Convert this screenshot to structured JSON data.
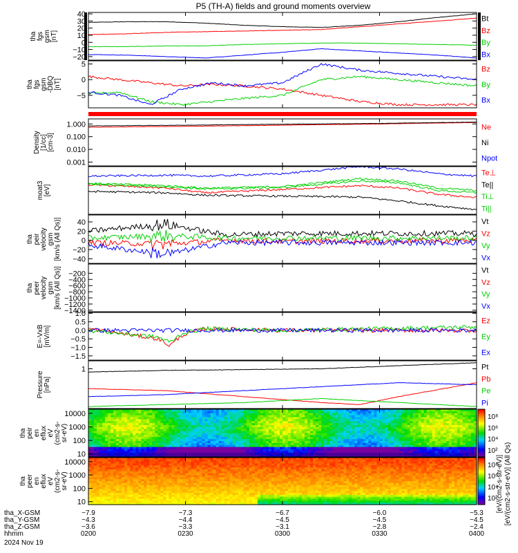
{
  "title": "P5 (TH-A) fields and ground moments overview",
  "colors": {
    "black": "#000000",
    "red": "#ff0000",
    "green": "#00d000",
    "blue": "#0000ff",
    "purple": "#8a2be2"
  },
  "chart_data": [
    {
      "id": "fgs",
      "type": "line",
      "ylabel": [
        "tha",
        "fgs",
        "gsm",
        "[nT]"
      ],
      "ylim": [
        -25,
        42
      ],
      "yticks": [
        "40",
        "30",
        "20",
        "10",
        "0",
        "−10",
        "−20"
      ],
      "ytick_values": [
        40,
        30,
        20,
        10,
        0,
        -10,
        -20
      ],
      "series": [
        {
          "name": "Bt",
          "color": "black",
          "x": [
            0,
            10,
            20,
            30,
            40,
            50,
            60,
            70,
            80,
            90,
            100
          ],
          "y": [
            28,
            29,
            29,
            27,
            24,
            22,
            21,
            24,
            29,
            35,
            40
          ]
        },
        {
          "name": "Bz",
          "color": "red",
          "x": [
            0,
            10,
            20,
            30,
            40,
            50,
            60,
            70,
            80,
            90,
            100
          ],
          "y": [
            11,
            12,
            14,
            15,
            16,
            17,
            18,
            22,
            26,
            30,
            34
          ]
        },
        {
          "name": "By",
          "color": "green",
          "x": [
            0,
            10,
            20,
            30,
            40,
            50,
            60,
            70,
            80,
            90,
            100
          ],
          "y": [
            -6,
            -6,
            -5,
            -5,
            -3,
            -2,
            -1,
            -1,
            -2,
            -3,
            -4
          ]
        },
        {
          "name": "Bx",
          "color": "blue",
          "x": [
            0,
            10,
            20,
            30,
            40,
            50,
            60,
            70,
            80,
            90,
            100
          ],
          "y": [
            -17,
            -18,
            -20,
            -22,
            -18,
            -14,
            -9,
            -12,
            -15,
            -18,
            -22
          ]
        }
      ]
    },
    {
      "id": "fgs_dsl",
      "type": "line",
      "ylabel": [
        "tha",
        "fgs",
        "gsm",
        "-DBQ",
        "[nT]"
      ],
      "ylim": [
        -9,
        6
      ],
      "yticks": [
        "5",
        "0",
        "−5"
      ],
      "ytick_values": [
        5,
        0,
        -5
      ],
      "series": [
        {
          "name": "Bz",
          "color": "red",
          "x": [
            0,
            8,
            16,
            24,
            32,
            40,
            50,
            60,
            70,
            80,
            90,
            100
          ],
          "y": [
            1,
            0,
            -1,
            -2,
            -1.5,
            -2,
            -3,
            -5,
            -7,
            -8,
            -8,
            -8
          ]
        },
        {
          "name": "By",
          "color": "green",
          "x": [
            0,
            8,
            16,
            24,
            32,
            40,
            50,
            60,
            70,
            80,
            90,
            100
          ],
          "y": [
            -4.5,
            -4,
            -7,
            -8,
            -7,
            -6,
            -5,
            0,
            1,
            0,
            -1,
            -2
          ]
        },
        {
          "name": "Bx",
          "color": "blue",
          "x": [
            0,
            8,
            16,
            24,
            32,
            40,
            50,
            60,
            70,
            80,
            90,
            100
          ],
          "y": [
            -4,
            -5,
            -8,
            -3,
            -1,
            -2,
            -1,
            5,
            3,
            2,
            1,
            0
          ]
        }
      ]
    },
    {
      "id": "density",
      "type": "line",
      "yscale": "log",
      "ylabel": [
        "Density",
        "[1/cc]",
        "[cm-3]"
      ],
      "ylim": [
        0.0005,
        2.5
      ],
      "yticks": [
        "1.000",
        "0.100",
        "0.010",
        "0.001"
      ],
      "ytick_values": [
        1,
        0.1,
        0.01,
        0.001
      ],
      "series": [
        {
          "name": "Ne",
          "color": "red",
          "x": [
            0,
            25,
            50,
            75,
            100
          ],
          "y": [
            0.55,
            0.65,
            0.8,
            1.0,
            1.3
          ]
        },
        {
          "name": "Ni",
          "color": "black",
          "x": [
            0,
            25,
            50,
            75,
            100
          ],
          "y": [
            0.7,
            0.8,
            0.95,
            1.1,
            1.4
          ]
        },
        {
          "name": "Npot",
          "color": "blue",
          "x": [],
          "y": []
        }
      ]
    },
    {
      "id": "temp",
      "type": "line",
      "ylabel": [
        "moat3",
        "[eV]"
      ],
      "ylim": [
        0,
        1
      ],
      "yticks": [],
      "ytick_values": [],
      "series": [
        {
          "name": "Te⊥",
          "color": "red",
          "x": [
            0,
            20,
            30,
            50,
            70,
            80,
            90,
            100
          ],
          "y": [
            0.62,
            0.55,
            0.45,
            0.52,
            0.6,
            0.55,
            0.42,
            0.35
          ]
        },
        {
          "name": "Te||",
          "color": "black",
          "x": [
            0,
            20,
            30,
            50,
            70,
            80,
            90,
            100
          ],
          "y": [
            0.48,
            0.45,
            0.4,
            0.38,
            0.36,
            0.28,
            0.18,
            0.1
          ]
        },
        {
          "name": "Ti⊥",
          "color": "green",
          "x": [
            0,
            20,
            30,
            50,
            70,
            80,
            90,
            100
          ],
          "y": [
            0.65,
            0.6,
            0.55,
            0.58,
            0.75,
            0.7,
            0.55,
            0.5
          ]
        },
        {
          "name": "Ti||",
          "color": "green",
          "x": [
            0,
            20,
            30,
            50,
            70,
            80,
            90,
            100
          ],
          "y": [
            0.63,
            0.58,
            0.53,
            0.56,
            0.7,
            0.66,
            0.5,
            0.45
          ]
        },
        {
          "name": "",
          "color": "blue",
          "x": [
            0,
            20,
            30,
            50,
            70,
            80,
            90,
            100
          ],
          "y": [
            0.8,
            0.82,
            0.8,
            0.85,
            1.0,
            0.95,
            0.85,
            0.8
          ]
        }
      ]
    },
    {
      "id": "vel_peir",
      "type": "line",
      "ylabel": [
        "tha",
        "peir",
        "velocity",
        "gsm",
        "[km/s (All Qs)]"
      ],
      "ylim": [
        -50,
        55
      ],
      "yticks": [
        "40",
        "20",
        "0",
        "−20",
        "−40"
      ],
      "ytick_values": [
        40,
        20,
        0,
        -20,
        -40
      ],
      "series": [
        {
          "name": "Vt",
          "color": "black",
          "x": [
            0,
            20,
            35,
            50,
            100
          ],
          "y": [
            20,
            35,
            12,
            15,
            15
          ]
        },
        {
          "name": "Vz",
          "color": "red",
          "x": [
            0,
            20,
            35,
            50,
            100
          ],
          "y": [
            -5,
            -8,
            0,
            -2,
            0
          ]
        },
        {
          "name": "Vy",
          "color": "green",
          "x": [
            0,
            20,
            35,
            50,
            100
          ],
          "y": [
            5,
            10,
            5,
            5,
            5
          ]
        },
        {
          "name": "Vx",
          "color": "blue",
          "x": [
            0,
            20,
            35,
            50,
            100
          ],
          "y": [
            -10,
            -30,
            -5,
            -5,
            -5
          ]
        }
      ]
    },
    {
      "id": "vel_peer",
      "type": "line",
      "ylabel": [
        "tha",
        "peer",
        "velocity",
        "gsm",
        "[km/s (All Qs)]"
      ],
      "ylim": [
        -1450,
        100
      ],
      "yticks": [
        "−200",
        "−400",
        "−600",
        "−800",
        "−1000",
        "−1200",
        "−1400"
      ],
      "ytick_values": [
        -200,
        -400,
        -600,
        -800,
        -1000,
        -1200,
        -1400
      ],
      "series": [
        {
          "name": "Vt",
          "color": "black",
          "x": [],
          "y": []
        },
        {
          "name": "Vz",
          "color": "red",
          "x": [],
          "y": []
        },
        {
          "name": "Vy",
          "color": "green",
          "x": [],
          "y": []
        },
        {
          "name": "Vx",
          "color": "blue",
          "x": [],
          "y": []
        }
      ]
    },
    {
      "id": "efield",
      "type": "line",
      "ylabel": [
        "E=-VxB",
        "[mV/m]"
      ],
      "ylim": [
        -1.75,
        1.05
      ],
      "yticks": [
        "1.0",
        "0.5",
        "0.0",
        "−0.5",
        "−1.0",
        "−1.5"
      ],
      "ytick_values": [
        1,
        0.5,
        0,
        -0.5,
        -1,
        -1.5
      ],
      "series": [
        {
          "name": "Ez",
          "color": "red",
          "x": [
            0,
            18,
            21,
            24,
            30,
            50,
            100
          ],
          "y": [
            0.1,
            -0.5,
            -0.9,
            -0.3,
            0.1,
            0,
            0
          ]
        },
        {
          "name": "Ey",
          "color": "green",
          "x": [
            0,
            18,
            21,
            24,
            30,
            50,
            100
          ],
          "y": [
            0,
            -0.4,
            -0.7,
            -0.2,
            0.1,
            0,
            0.2
          ]
        },
        {
          "name": "Ex",
          "color": "blue",
          "x": [
            0,
            18,
            21,
            24,
            30,
            50,
            100
          ],
          "y": [
            0,
            0,
            0,
            0,
            0,
            0,
            0
          ]
        }
      ]
    },
    {
      "id": "pressure",
      "type": "line",
      "ylabel": [
        "Pressure",
        "[nPa]"
      ],
      "ylim": [
        0,
        1.2
      ],
      "yticks": [
        "1"
      ],
      "ytick_values": [
        1
      ],
      "series": [
        {
          "name": "Pt",
          "color": "black",
          "x": [
            0,
            20,
            40,
            60,
            80,
            100
          ],
          "y": [
            0.92,
            0.96,
            0.98,
            1.0,
            1.08,
            1.15
          ]
        },
        {
          "name": "Pb",
          "color": "red",
          "x": [
            0,
            20,
            40,
            60,
            70,
            80,
            100
          ],
          "y": [
            0.5,
            0.45,
            0.3,
            0.15,
            0.1,
            0.3,
            0.65
          ]
        },
        {
          "name": "Pe",
          "color": "green",
          "x": [
            0,
            20,
            40,
            60,
            80,
            100
          ],
          "y": [
            0.05,
            0.1,
            0.15,
            0.25,
            0.15,
            0.05
          ]
        },
        {
          "name": "Pi",
          "color": "blue",
          "x": [
            0,
            20,
            40,
            60,
            80,
            100
          ],
          "y": [
            0.3,
            0.35,
            0.45,
            0.55,
            0.65,
            0.6
          ]
        }
      ]
    },
    {
      "id": "peir_spec",
      "type": "heatmap",
      "ylabel": [
        "tha",
        "peir",
        "en",
        "eflux",
        "eV",
        "(cm2-s-",
        "sr-eV)"
      ],
      "yticks": [
        "10000",
        "1000",
        "100",
        "10"
      ],
      "ytick_values": [
        10000,
        1000,
        100,
        10
      ]
    },
    {
      "id": "peer_spec",
      "type": "heatmap",
      "ylabel": [
        "tha",
        "peer",
        "en",
        "eflux",
        "eV",
        "(cm2-s-",
        "sr-eV)"
      ],
      "yticks": [
        "10000",
        "1000",
        "100",
        "10"
      ],
      "ytick_values": [
        10000,
        1000,
        100,
        10
      ]
    }
  ],
  "legends": [
    [
      "Bt",
      "Bz",
      "By",
      "Bx"
    ],
    [
      "Bz",
      "By",
      "Bx"
    ],
    [
      "Ne",
      "Ni",
      "Npot"
    ],
    [
      "Te⊥",
      "Te||",
      "Ti⊥",
      "Ti||"
    ],
    [
      "Vt",
      "Vz",
      "Vy",
      "Vx"
    ],
    [
      "Vt",
      "Vz",
      "Vy",
      "Vx"
    ],
    [
      "Ez",
      "Ey",
      "Ex"
    ],
    [
      "Pt",
      "Pb",
      "Pe",
      "Pi"
    ]
  ],
  "legend_colors": [
    [
      "black",
      "red",
      "green",
      "blue"
    ],
    [
      "red",
      "green",
      "blue"
    ],
    [
      "red",
      "black",
      "blue"
    ],
    [
      "red",
      "black",
      "green",
      "green"
    ],
    [
      "black",
      "red",
      "green",
      "blue"
    ],
    [
      "black",
      "red",
      "green",
      "blue"
    ],
    [
      "red",
      "green",
      "blue"
    ],
    [
      "black",
      "red",
      "green",
      "blue"
    ]
  ],
  "colorbar": {
    "unit_label": "[eV/(cm2-s-str-eV)] (All Qs)",
    "unit_label_2": "[eV/(cm2-s-str-eV)]",
    "ticks_top": [
      "10⁸",
      "10⁶",
      "10⁴",
      "10²"
    ],
    "ticks_bottom": [
      "10⁸",
      "10⁶",
      "10⁴",
      "10²"
    ]
  },
  "xaxis": {
    "rows": [
      {
        "label": "tha_X-GSM",
        "values": [
          "−7.9",
          "−7.3",
          "−6.7",
          "−6.0",
          "−5.3"
        ]
      },
      {
        "label": "tha_Y-GSM",
        "values": [
          "−4.3",
          "−4.4",
          "−4.5",
          "−4.5",
          "−4.5"
        ]
      },
      {
        "label": "tha_Z-GSM",
        "values": [
          "−3.6",
          "−3.3",
          "−3.1",
          "−2.8",
          "−2.4"
        ]
      },
      {
        "label": "hhmm",
        "values": [
          "0200",
          "0230",
          "0300",
          "0330",
          "0400"
        ]
      }
    ],
    "date": "2024 Nov 19"
  }
}
